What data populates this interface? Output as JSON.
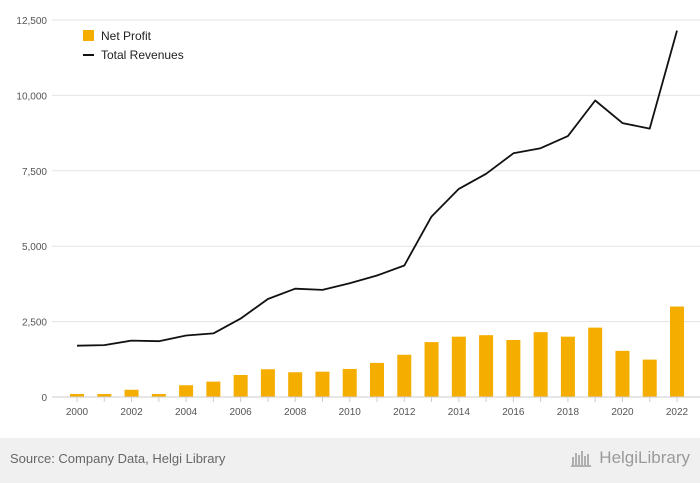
{
  "chart_data": {
    "type": "bar",
    "x": [
      2000,
      2001,
      2002,
      2003,
      2004,
      2005,
      2006,
      2007,
      2008,
      2009,
      2010,
      2011,
      2012,
      2013,
      2014,
      2015,
      2016,
      2017,
      2018,
      2019,
      2020,
      2021,
      2022
    ],
    "x_tick_labels": [
      "2000",
      "2002",
      "2004",
      "2006",
      "2008",
      "2010",
      "2012",
      "2014",
      "2016",
      "2018",
      "2020",
      "2022"
    ],
    "y_tick_labels": [
      "0",
      "2,500",
      "5,000",
      "7,500",
      "10,000",
      "12,500"
    ],
    "ylim": [
      0,
      12500
    ],
    "grid": true,
    "legend_position": "top-left",
    "series": [
      {
        "name": "Net Profit",
        "type": "bar",
        "color": "#f5ad00",
        "values": [
          100,
          100,
          240,
          100,
          390,
          510,
          730,
          920,
          820,
          840,
          930,
          1130,
          1400,
          1820,
          2000,
          2050,
          1890,
          2150,
          2000,
          2300,
          1530,
          1240,
          3000
        ]
      },
      {
        "name": "Total Revenues",
        "type": "line",
        "color": "#111111",
        "values": [
          1700,
          1720,
          1870,
          1850,
          2040,
          2110,
          2600,
          3250,
          3590,
          3550,
          3770,
          4030,
          4360,
          5980,
          6900,
          7400,
          8080,
          8250,
          8650,
          9830,
          9080,
          8900,
          12150
        ]
      }
    ]
  },
  "footer": {
    "source": "Source: Company Data, Helgi Library",
    "brand": "HelgiLibrary"
  }
}
